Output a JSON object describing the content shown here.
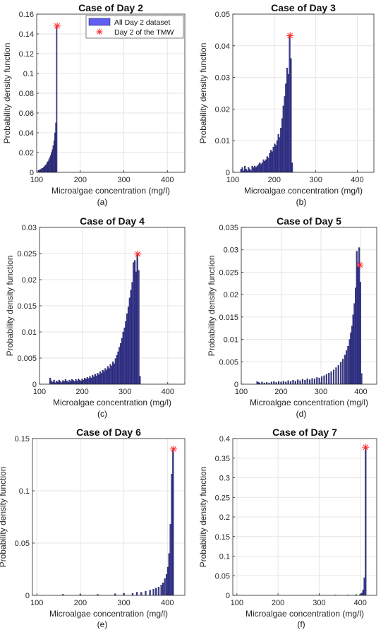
{
  "chart_data": [
    {
      "type": "histogram",
      "title": "Case of Day 2",
      "xlabel": "Microalgae concentration (mg/l)",
      "ylabel": "Probability density function",
      "caption": "(a)",
      "xlim": [
        100,
        440
      ],
      "ylim": [
        0,
        0.16
      ],
      "xticks": [
        "100",
        "200",
        "300",
        "400"
      ],
      "yticks": [
        "0",
        "0.02",
        "0.04",
        "0.06",
        "0.08",
        "0.1",
        "0.12",
        "0.14",
        "0.16"
      ],
      "ytick_values": [
        0,
        0.02,
        0.04,
        0.06,
        0.08,
        0.1,
        0.12,
        0.14,
        0.16
      ],
      "grid": true,
      "legend": {
        "placement": "top-right",
        "entries": [
          {
            "label": "All Day 2 dataset",
            "kind": "bar"
          },
          {
            "label": "Day 2 of the TMW",
            "kind": "marker"
          }
        ]
      },
      "bin_width": 2,
      "bins": [
        {
          "x": 104,
          "y": 0.002
        },
        {
          "x": 106,
          "y": 0.002
        },
        {
          "x": 108,
          "y": 0.003
        },
        {
          "x": 110,
          "y": 0.003
        },
        {
          "x": 112,
          "y": 0.004
        },
        {
          "x": 114,
          "y": 0.004
        },
        {
          "x": 116,
          "y": 0.005
        },
        {
          "x": 118,
          "y": 0.006
        },
        {
          "x": 120,
          "y": 0.007
        },
        {
          "x": 122,
          "y": 0.008
        },
        {
          "x": 124,
          "y": 0.01
        },
        {
          "x": 126,
          "y": 0.011
        },
        {
          "x": 128,
          "y": 0.013
        },
        {
          "x": 130,
          "y": 0.015
        },
        {
          "x": 132,
          "y": 0.017
        },
        {
          "x": 134,
          "y": 0.02
        },
        {
          "x": 136,
          "y": 0.023
        },
        {
          "x": 138,
          "y": 0.027
        },
        {
          "x": 140,
          "y": 0.032
        },
        {
          "x": 142,
          "y": 0.04
        },
        {
          "x": 144,
          "y": 0.05
        },
        {
          "x": 146,
          "y": 0.148
        }
      ],
      "marker": {
        "x": 147,
        "y": 0.148
      }
    },
    {
      "type": "histogram",
      "title": "Case of Day 3",
      "xlabel": "Microalgae concentration (mg/l)",
      "ylabel": "Probability density function",
      "caption": "(b)",
      "xlim": [
        100,
        440
      ],
      "ylim": [
        0,
        0.05
      ],
      "xticks": [
        "100",
        "200",
        "300",
        "400"
      ],
      "yticks": [
        "0",
        "0.01",
        "0.02",
        "0.03",
        "0.04",
        "0.05"
      ],
      "ytick_values": [
        0,
        0.01,
        0.02,
        0.03,
        0.04,
        0.05
      ],
      "grid": true,
      "bin_width": 3,
      "bins": [
        {
          "x": 120,
          "y": 0.001
        },
        {
          "x": 123,
          "y": 0.0015
        },
        {
          "x": 126,
          "y": 0.0005
        },
        {
          "x": 129,
          "y": 0.002
        },
        {
          "x": 132,
          "y": 0.001
        },
        {
          "x": 135,
          "y": 0.0005
        },
        {
          "x": 138,
          "y": 0.0015
        },
        {
          "x": 141,
          "y": 0.001
        },
        {
          "x": 144,
          "y": 0.0005
        },
        {
          "x": 147,
          "y": 0.002
        },
        {
          "x": 150,
          "y": 0.0015
        },
        {
          "x": 153,
          "y": 0.002
        },
        {
          "x": 156,
          "y": 0.0015
        },
        {
          "x": 159,
          "y": 0.002
        },
        {
          "x": 162,
          "y": 0.0025
        },
        {
          "x": 165,
          "y": 0.003
        },
        {
          "x": 168,
          "y": 0.0025
        },
        {
          "x": 171,
          "y": 0.003
        },
        {
          "x": 174,
          "y": 0.004
        },
        {
          "x": 177,
          "y": 0.0035
        },
        {
          "x": 180,
          "y": 0.004
        },
        {
          "x": 183,
          "y": 0.005
        },
        {
          "x": 186,
          "y": 0.0045
        },
        {
          "x": 189,
          "y": 0.006
        },
        {
          "x": 192,
          "y": 0.007
        },
        {
          "x": 195,
          "y": 0.0065
        },
        {
          "x": 198,
          "y": 0.008
        },
        {
          "x": 201,
          "y": 0.009
        },
        {
          "x": 204,
          "y": 0.0085
        },
        {
          "x": 207,
          "y": 0.01
        },
        {
          "x": 210,
          "y": 0.012
        },
        {
          "x": 213,
          "y": 0.011
        },
        {
          "x": 216,
          "y": 0.014
        },
        {
          "x": 219,
          "y": 0.017
        },
        {
          "x": 222,
          "y": 0.021
        },
        {
          "x": 225,
          "y": 0.024
        },
        {
          "x": 228,
          "y": 0.028
        },
        {
          "x": 231,
          "y": 0.033
        },
        {
          "x": 234,
          "y": 0.031
        },
        {
          "x": 237,
          "y": 0.043
        },
        {
          "x": 240,
          "y": 0.036
        },
        {
          "x": 243,
          "y": 0.003
        }
      ],
      "marker": {
        "x": 238,
        "y": 0.0432
      }
    },
    {
      "type": "histogram",
      "title": "Case of Day 4",
      "xlabel": "Microalgae concentration (mg/l)",
      "ylabel": "Probability density function",
      "caption": "(c)",
      "xlim": [
        100,
        440
      ],
      "ylim": [
        0,
        0.03
      ],
      "xticks": [
        "100",
        "200",
        "300",
        "400"
      ],
      "yticks": [
        "0",
        "0.005",
        "0.01",
        "0.015",
        "0.02",
        "0.025",
        "0.03"
      ],
      "ytick_values": [
        0,
        0.005,
        0.01,
        0.015,
        0.02,
        0.025,
        0.03
      ],
      "grid": true,
      "bin_width": 3,
      "bins": [
        {
          "x": 125,
          "y": 0.0012
        },
        {
          "x": 128,
          "y": 0.0006
        },
        {
          "x": 131,
          "y": 0.0004
        },
        {
          "x": 134,
          "y": 0.0008
        },
        {
          "x": 137,
          "y": 0.0003
        },
        {
          "x": 140,
          "y": 0.0006
        },
        {
          "x": 143,
          "y": 0.0004
        },
        {
          "x": 146,
          "y": 0.0008
        },
        {
          "x": 149,
          "y": 0.0005
        },
        {
          "x": 152,
          "y": 0.0003
        },
        {
          "x": 155,
          "y": 0.0007
        },
        {
          "x": 158,
          "y": 0.0005
        },
        {
          "x": 161,
          "y": 0.0009
        },
        {
          "x": 164,
          "y": 0.0006
        },
        {
          "x": 167,
          "y": 0.0004
        },
        {
          "x": 170,
          "y": 0.0008
        },
        {
          "x": 173,
          "y": 0.0005
        },
        {
          "x": 176,
          "y": 0.0009
        },
        {
          "x": 179,
          "y": 0.0007
        },
        {
          "x": 182,
          "y": 0.0005
        },
        {
          "x": 185,
          "y": 0.0009
        },
        {
          "x": 188,
          "y": 0.0006
        },
        {
          "x": 191,
          "y": 0.001
        },
        {
          "x": 194,
          "y": 0.0008
        },
        {
          "x": 197,
          "y": 0.0006
        },
        {
          "x": 200,
          "y": 0.001
        },
        {
          "x": 203,
          "y": 0.0008
        },
        {
          "x": 206,
          "y": 0.0012
        },
        {
          "x": 209,
          "y": 0.0009
        },
        {
          "x": 212,
          "y": 0.0013
        },
        {
          "x": 215,
          "y": 0.0011
        },
        {
          "x": 218,
          "y": 0.0015
        },
        {
          "x": 221,
          "y": 0.0012
        },
        {
          "x": 224,
          "y": 0.0017
        },
        {
          "x": 227,
          "y": 0.0014
        },
        {
          "x": 230,
          "y": 0.0019
        },
        {
          "x": 233,
          "y": 0.0016
        },
        {
          "x": 236,
          "y": 0.0021
        },
        {
          "x": 239,
          "y": 0.0018
        },
        {
          "x": 242,
          "y": 0.0024
        },
        {
          "x": 245,
          "y": 0.0021
        },
        {
          "x": 248,
          "y": 0.0027
        },
        {
          "x": 251,
          "y": 0.0024
        },
        {
          "x": 254,
          "y": 0.003
        },
        {
          "x": 257,
          "y": 0.0027
        },
        {
          "x": 260,
          "y": 0.0034
        },
        {
          "x": 263,
          "y": 0.003
        },
        {
          "x": 266,
          "y": 0.0038
        },
        {
          "x": 269,
          "y": 0.0035
        },
        {
          "x": 272,
          "y": 0.0043
        },
        {
          "x": 275,
          "y": 0.0039
        },
        {
          "x": 278,
          "y": 0.0049
        },
        {
          "x": 281,
          "y": 0.0055
        },
        {
          "x": 284,
          "y": 0.0062
        },
        {
          "x": 287,
          "y": 0.0071
        },
        {
          "x": 290,
          "y": 0.0078
        },
        {
          "x": 293,
          "y": 0.0088
        },
        {
          "x": 296,
          "y": 0.01
        },
        {
          "x": 299,
          "y": 0.0108
        },
        {
          "x": 302,
          "y": 0.012
        },
        {
          "x": 305,
          "y": 0.0135
        },
        {
          "x": 308,
          "y": 0.0148
        },
        {
          "x": 311,
          "y": 0.0165
        },
        {
          "x": 314,
          "y": 0.018
        },
        {
          "x": 317,
          "y": 0.0195
        },
        {
          "x": 320,
          "y": 0.0233
        },
        {
          "x": 323,
          "y": 0.0237
        },
        {
          "x": 326,
          "y": 0.0215
        },
        {
          "x": 329,
          "y": 0.0248
        },
        {
          "x": 332,
          "y": 0.0218
        },
        {
          "x": 335,
          "y": 0.0015
        }
      ],
      "marker": {
        "x": 330,
        "y": 0.0249
      }
    },
    {
      "type": "histogram",
      "title": "Case of Day 5",
      "xlabel": "Microalgae concentration (mg/l)",
      "ylabel": "Probability density function",
      "caption": "(d)",
      "xlim": [
        100,
        440
      ],
      "ylim": [
        0,
        0.035
      ],
      "xticks": [
        "100",
        "200",
        "300",
        "400"
      ],
      "yticks": [
        "0",
        "0.005",
        "0.01",
        "0.015",
        "0.02",
        "0.025",
        "0.03",
        "0.035"
      ],
      "ytick_values": [
        0,
        0.005,
        0.01,
        0.015,
        0.02,
        0.025,
        0.03,
        0.035
      ],
      "grid": true,
      "bin_width": 3,
      "bins": [
        {
          "x": 140,
          "y": 0.0006
        },
        {
          "x": 143,
          "y": 0.0004
        },
        {
          "x": 146,
          "y": 0.0003
        },
        {
          "x": 152,
          "y": 0.0005
        },
        {
          "x": 158,
          "y": 0.0003
        },
        {
          "x": 164,
          "y": 0.0004
        },
        {
          "x": 170,
          "y": 0.0003
        },
        {
          "x": 176,
          "y": 0.0005
        },
        {
          "x": 182,
          "y": 0.0006
        },
        {
          "x": 188,
          "y": 0.0004
        },
        {
          "x": 194,
          "y": 0.0006
        },
        {
          "x": 200,
          "y": 0.0005
        },
        {
          "x": 206,
          "y": 0.0007
        },
        {
          "x": 212,
          "y": 0.0005
        },
        {
          "x": 218,
          "y": 0.0008
        },
        {
          "x": 224,
          "y": 0.0006
        },
        {
          "x": 230,
          "y": 0.0009
        },
        {
          "x": 236,
          "y": 0.0007
        },
        {
          "x": 242,
          "y": 0.001
        },
        {
          "x": 248,
          "y": 0.0008
        },
        {
          "x": 254,
          "y": 0.0011
        },
        {
          "x": 260,
          "y": 0.0009
        },
        {
          "x": 266,
          "y": 0.0012
        },
        {
          "x": 272,
          "y": 0.001
        },
        {
          "x": 278,
          "y": 0.0013
        },
        {
          "x": 284,
          "y": 0.0012
        },
        {
          "x": 290,
          "y": 0.0015
        },
        {
          "x": 296,
          "y": 0.0014
        },
        {
          "x": 302,
          "y": 0.0017
        },
        {
          "x": 308,
          "y": 0.0019
        },
        {
          "x": 314,
          "y": 0.0022
        },
        {
          "x": 320,
          "y": 0.0025
        },
        {
          "x": 326,
          "y": 0.0028
        },
        {
          "x": 332,
          "y": 0.0032
        },
        {
          "x": 338,
          "y": 0.0037
        },
        {
          "x": 344,
          "y": 0.0042
        },
        {
          "x": 350,
          "y": 0.0049
        },
        {
          "x": 355,
          "y": 0.0056
        },
        {
          "x": 360,
          "y": 0.0065
        },
        {
          "x": 364,
          "y": 0.0075
        },
        {
          "x": 368,
          "y": 0.0085
        },
        {
          "x": 372,
          "y": 0.01
        },
        {
          "x": 375,
          "y": 0.0115
        },
        {
          "x": 378,
          "y": 0.013
        },
        {
          "x": 381,
          "y": 0.0155
        },
        {
          "x": 384,
          "y": 0.018
        },
        {
          "x": 387,
          "y": 0.0215
        },
        {
          "x": 390,
          "y": 0.0297
        },
        {
          "x": 393,
          "y": 0.0262
        },
        {
          "x": 396,
          "y": 0.0305
        },
        {
          "x": 399,
          "y": 0.0228
        },
        {
          "x": 402,
          "y": 0.0024
        }
      ],
      "marker": {
        "x": 398,
        "y": 0.0266
      }
    },
    {
      "type": "histogram",
      "title": "Case of Day 6",
      "xlabel": "Microalgae concentration (mg/l)",
      "ylabel": "Probability density function",
      "caption": "(e)",
      "xlim": [
        90,
        440
      ],
      "ylim": [
        0,
        0.15
      ],
      "xticks": [
        "100",
        "200",
        "300",
        "400"
      ],
      "yticks": [
        "0",
        "0.05",
        "0.1",
        "0.15"
      ],
      "ytick_values": [
        0,
        0.05,
        0.1,
        0.15
      ],
      "grid": true,
      "bin_width": 3,
      "bins": [
        {
          "x": 160,
          "y": 0.001
        },
        {
          "x": 200,
          "y": 0.001
        },
        {
          "x": 240,
          "y": 0.001
        },
        {
          "x": 280,
          "y": 0.0015
        },
        {
          "x": 300,
          "y": 0.002
        },
        {
          "x": 320,
          "y": 0.002
        },
        {
          "x": 330,
          "y": 0.003
        },
        {
          "x": 340,
          "y": 0.003
        },
        {
          "x": 350,
          "y": 0.004
        },
        {
          "x": 360,
          "y": 0.005
        },
        {
          "x": 368,
          "y": 0.006
        },
        {
          "x": 374,
          "y": 0.007
        },
        {
          "x": 380,
          "y": 0.008
        },
        {
          "x": 386,
          "y": 0.01
        },
        {
          "x": 390,
          "y": 0.012
        },
        {
          "x": 394,
          "y": 0.016
        },
        {
          "x": 398,
          "y": 0.02
        },
        {
          "x": 401,
          "y": 0.027
        },
        {
          "x": 404,
          "y": 0.04
        },
        {
          "x": 407,
          "y": 0.068
        },
        {
          "x": 410,
          "y": 0.116
        },
        {
          "x": 413,
          "y": 0.139
        }
      ],
      "marker": {
        "x": 414,
        "y": 0.14
      }
    },
    {
      "type": "histogram",
      "title": "Case of Day 7",
      "xlabel": "Microalgae concentration (mg/l)",
      "ylabel": "Probability density function",
      "caption": "(f)",
      "xlim": [
        90,
        440
      ],
      "ylim": [
        0,
        0.4
      ],
      "xticks": [
        "100",
        "200",
        "300",
        "400"
      ],
      "yticks": [
        "0",
        "0.05",
        "0.1",
        "0.15",
        "0.2",
        "0.25",
        "0.3",
        "0.35",
        "0.4"
      ],
      "ytick_values": [
        0,
        0.05,
        0.1,
        0.15,
        0.2,
        0.25,
        0.3,
        0.35,
        0.4
      ],
      "grid": true,
      "bin_width": 3,
      "bins": [
        {
          "x": 300,
          "y": 0.001
        },
        {
          "x": 340,
          "y": 0.001
        },
        {
          "x": 370,
          "y": 0.001
        },
        {
          "x": 390,
          "y": 0.002
        },
        {
          "x": 400,
          "y": 0.003
        },
        {
          "x": 404,
          "y": 0.006
        },
        {
          "x": 407,
          "y": 0.014
        },
        {
          "x": 410,
          "y": 0.045
        },
        {
          "x": 413,
          "y": 0.375
        }
      ],
      "marker": {
        "x": 413,
        "y": 0.378
      }
    }
  ],
  "colors": {
    "bar_fill": "#3e3e9a",
    "bar_edge": "#15154a",
    "marker": "#ff2020",
    "legend_bar": "#5f5ff0",
    "grid": "#e6e6e6",
    "axis": "#262626"
  }
}
